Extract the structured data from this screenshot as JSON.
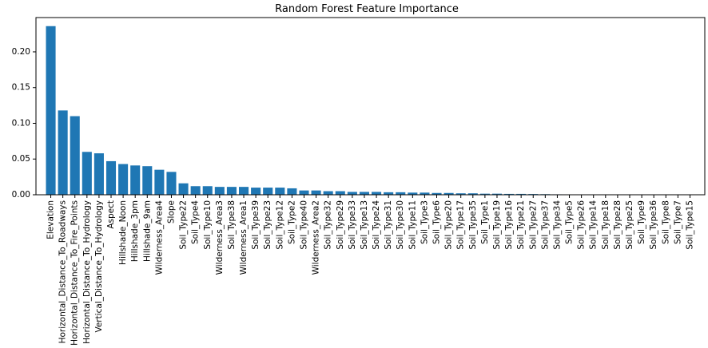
{
  "chart_data": {
    "type": "bar",
    "title": "Random Forest Feature Importance",
    "xlabel": "",
    "ylabel": "",
    "ylim": [
      0,
      0.248
    ],
    "yticks": [
      "0.00",
      "0.05",
      "0.10",
      "0.15",
      "0.20"
    ],
    "ytick_values": [
      0,
      0.05,
      0.1,
      0.15,
      0.2
    ],
    "grid": false,
    "bar_color": "#1f77b4",
    "categories": [
      "Elevation",
      "Horizontal_Distance_To_Roadways",
      "Horizontal_Distance_To_Fire_Points",
      "Horizontal_Distance_To_Hydrology",
      "Vertical_Distance_To_Hydrology",
      "Aspect",
      "Hillshade_Noon",
      "Hillshade_3pm",
      "Hillshade_9am",
      "Wilderness_Area4",
      "Slope",
      "Soil_Type22",
      "Soil_Type4",
      "Soil_Type10",
      "Wilderness_Area3",
      "Soil_Type38",
      "Wilderness_Area1",
      "Soil_Type39",
      "Soil_Type23",
      "Soil_Type12",
      "Soil_Type2",
      "Soil_Type40",
      "Wilderness_Area2",
      "Soil_Type32",
      "Soil_Type29",
      "Soil_Type33",
      "Soil_Type13",
      "Soil_Type24",
      "Soil_Type31",
      "Soil_Type30",
      "Soil_Type11",
      "Soil_Type3",
      "Soil_Type6",
      "Soil_Type20",
      "Soil_Type17",
      "Soil_Type35",
      "Soil_Type1",
      "Soil_Type19",
      "Soil_Type16",
      "Soil_Type21",
      "Soil_Type27",
      "Soil_Type37",
      "Soil_Type34",
      "Soil_Type5",
      "Soil_Type26",
      "Soil_Type14",
      "Soil_Type18",
      "Soil_Type28",
      "Soil_Type25",
      "Soil_Type9",
      "Soil_Type36",
      "Soil_Type8",
      "Soil_Type7",
      "Soil_Type15"
    ],
    "values": [
      0.236,
      0.118,
      0.11,
      0.06,
      0.058,
      0.047,
      0.043,
      0.041,
      0.04,
      0.035,
      0.032,
      0.016,
      0.012,
      0.012,
      0.011,
      0.011,
      0.011,
      0.01,
      0.01,
      0.01,
      0.009,
      0.006,
      0.006,
      0.005,
      0.005,
      0.004,
      0.004,
      0.004,
      0.0035,
      0.0035,
      0.003,
      0.003,
      0.0025,
      0.0025,
      0.002,
      0.002,
      0.0015,
      0.0015,
      0.0012,
      0.0012,
      0.001,
      0.0008,
      0.0006,
      0.0005,
      0.0004,
      0.0003,
      0.0003,
      0.0002,
      0.0002,
      0.0002,
      0.0001,
      0.0001,
      0.0001,
      5e-05
    ]
  }
}
